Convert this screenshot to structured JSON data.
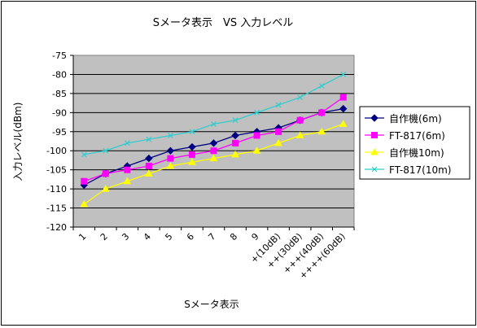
{
  "chart_data": {
    "type": "line",
    "title": "Sメータ表示　VS 入力レベル",
    "xlabel": "Sメータ表示",
    "ylabel": "入力レベル(dBm)",
    "categories": [
      "1",
      "2",
      "3",
      "4",
      "5",
      "6",
      "7",
      "8",
      "9",
      "+(10dB)",
      "++(30dB)",
      "+++(40dB)",
      "++++(60dB)"
    ],
    "ylim": [
      -120,
      -75
    ],
    "yticks": [
      -75,
      -80,
      -85,
      -90,
      -95,
      -100,
      -105,
      -110,
      -115,
      -120
    ],
    "grid": true,
    "legend_position": "right",
    "series": [
      {
        "name": "自作機(6m)",
        "color": "#000080",
        "marker": "diamond",
        "values": [
          -109,
          -106,
          -104,
          -102,
          -100,
          -99,
          -98,
          -96,
          -95,
          -94,
          -92,
          -90,
          -89
        ]
      },
      {
        "name": "FT-817(6m)",
        "color": "#ff00ff",
        "marker": "square",
        "values": [
          -108,
          -106,
          -105,
          -104,
          -102,
          -101,
          -100,
          -98,
          -96,
          -95,
          -92,
          -90,
          -86
        ]
      },
      {
        "name": "自作機10m)",
        "color": "#ffff00",
        "marker": "triangle",
        "values": [
          -114,
          -110,
          -108,
          -106,
          -104,
          -103,
          -102,
          -101,
          -100,
          -98,
          -96,
          -95,
          -93
        ]
      },
      {
        "name": "FT-817(10m)",
        "color": "#33cccc",
        "marker": "x",
        "values": [
          -101,
          -100,
          -98,
          -97,
          -96,
          -95,
          -93,
          -92,
          -90,
          -88,
          -86,
          -83,
          -80
        ]
      }
    ]
  }
}
